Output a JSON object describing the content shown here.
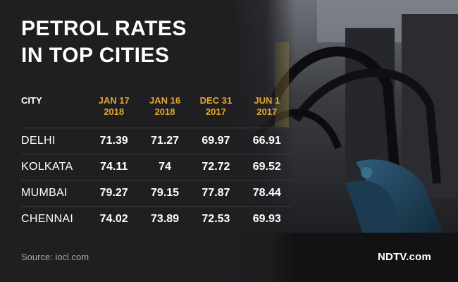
{
  "title_line1": "PETROL RATES",
  "title_line2": "IN TOP CITIES",
  "chart_data": {
    "type": "table",
    "columns": [
      "CITY",
      "JAN 17 2018",
      "JAN 16 2018",
      "DEC 31 2017",
      "JUN 1 2017"
    ],
    "header_lines": [
      [
        "CITY",
        ""
      ],
      [
        "JAN 17",
        "2018"
      ],
      [
        "JAN 16",
        "2018"
      ],
      [
        "DEC 31",
        "2017"
      ],
      [
        "JUN 1",
        "2017"
      ]
    ],
    "rows": [
      [
        "DELHI",
        "71.39",
        "71.27",
        "69.97",
        "66.91"
      ],
      [
        "KOLKATA",
        "74.11",
        "74",
        "72.72",
        "69.52"
      ],
      [
        "MUMBAI",
        "79.27",
        "79.15",
        "77.87",
        "78.44"
      ],
      [
        "CHENNAI",
        "74.02",
        "73.89",
        "72.53",
        "69.93"
      ]
    ]
  },
  "source": "Source: iocl.com",
  "brand": "NDTV.com",
  "colors": {
    "background": "#1f1f22",
    "accent": "#e4a62b",
    "text": "#ffffff",
    "muted": "#a8a8ad"
  },
  "background_image": "petrol-pump-nozzle-icon"
}
